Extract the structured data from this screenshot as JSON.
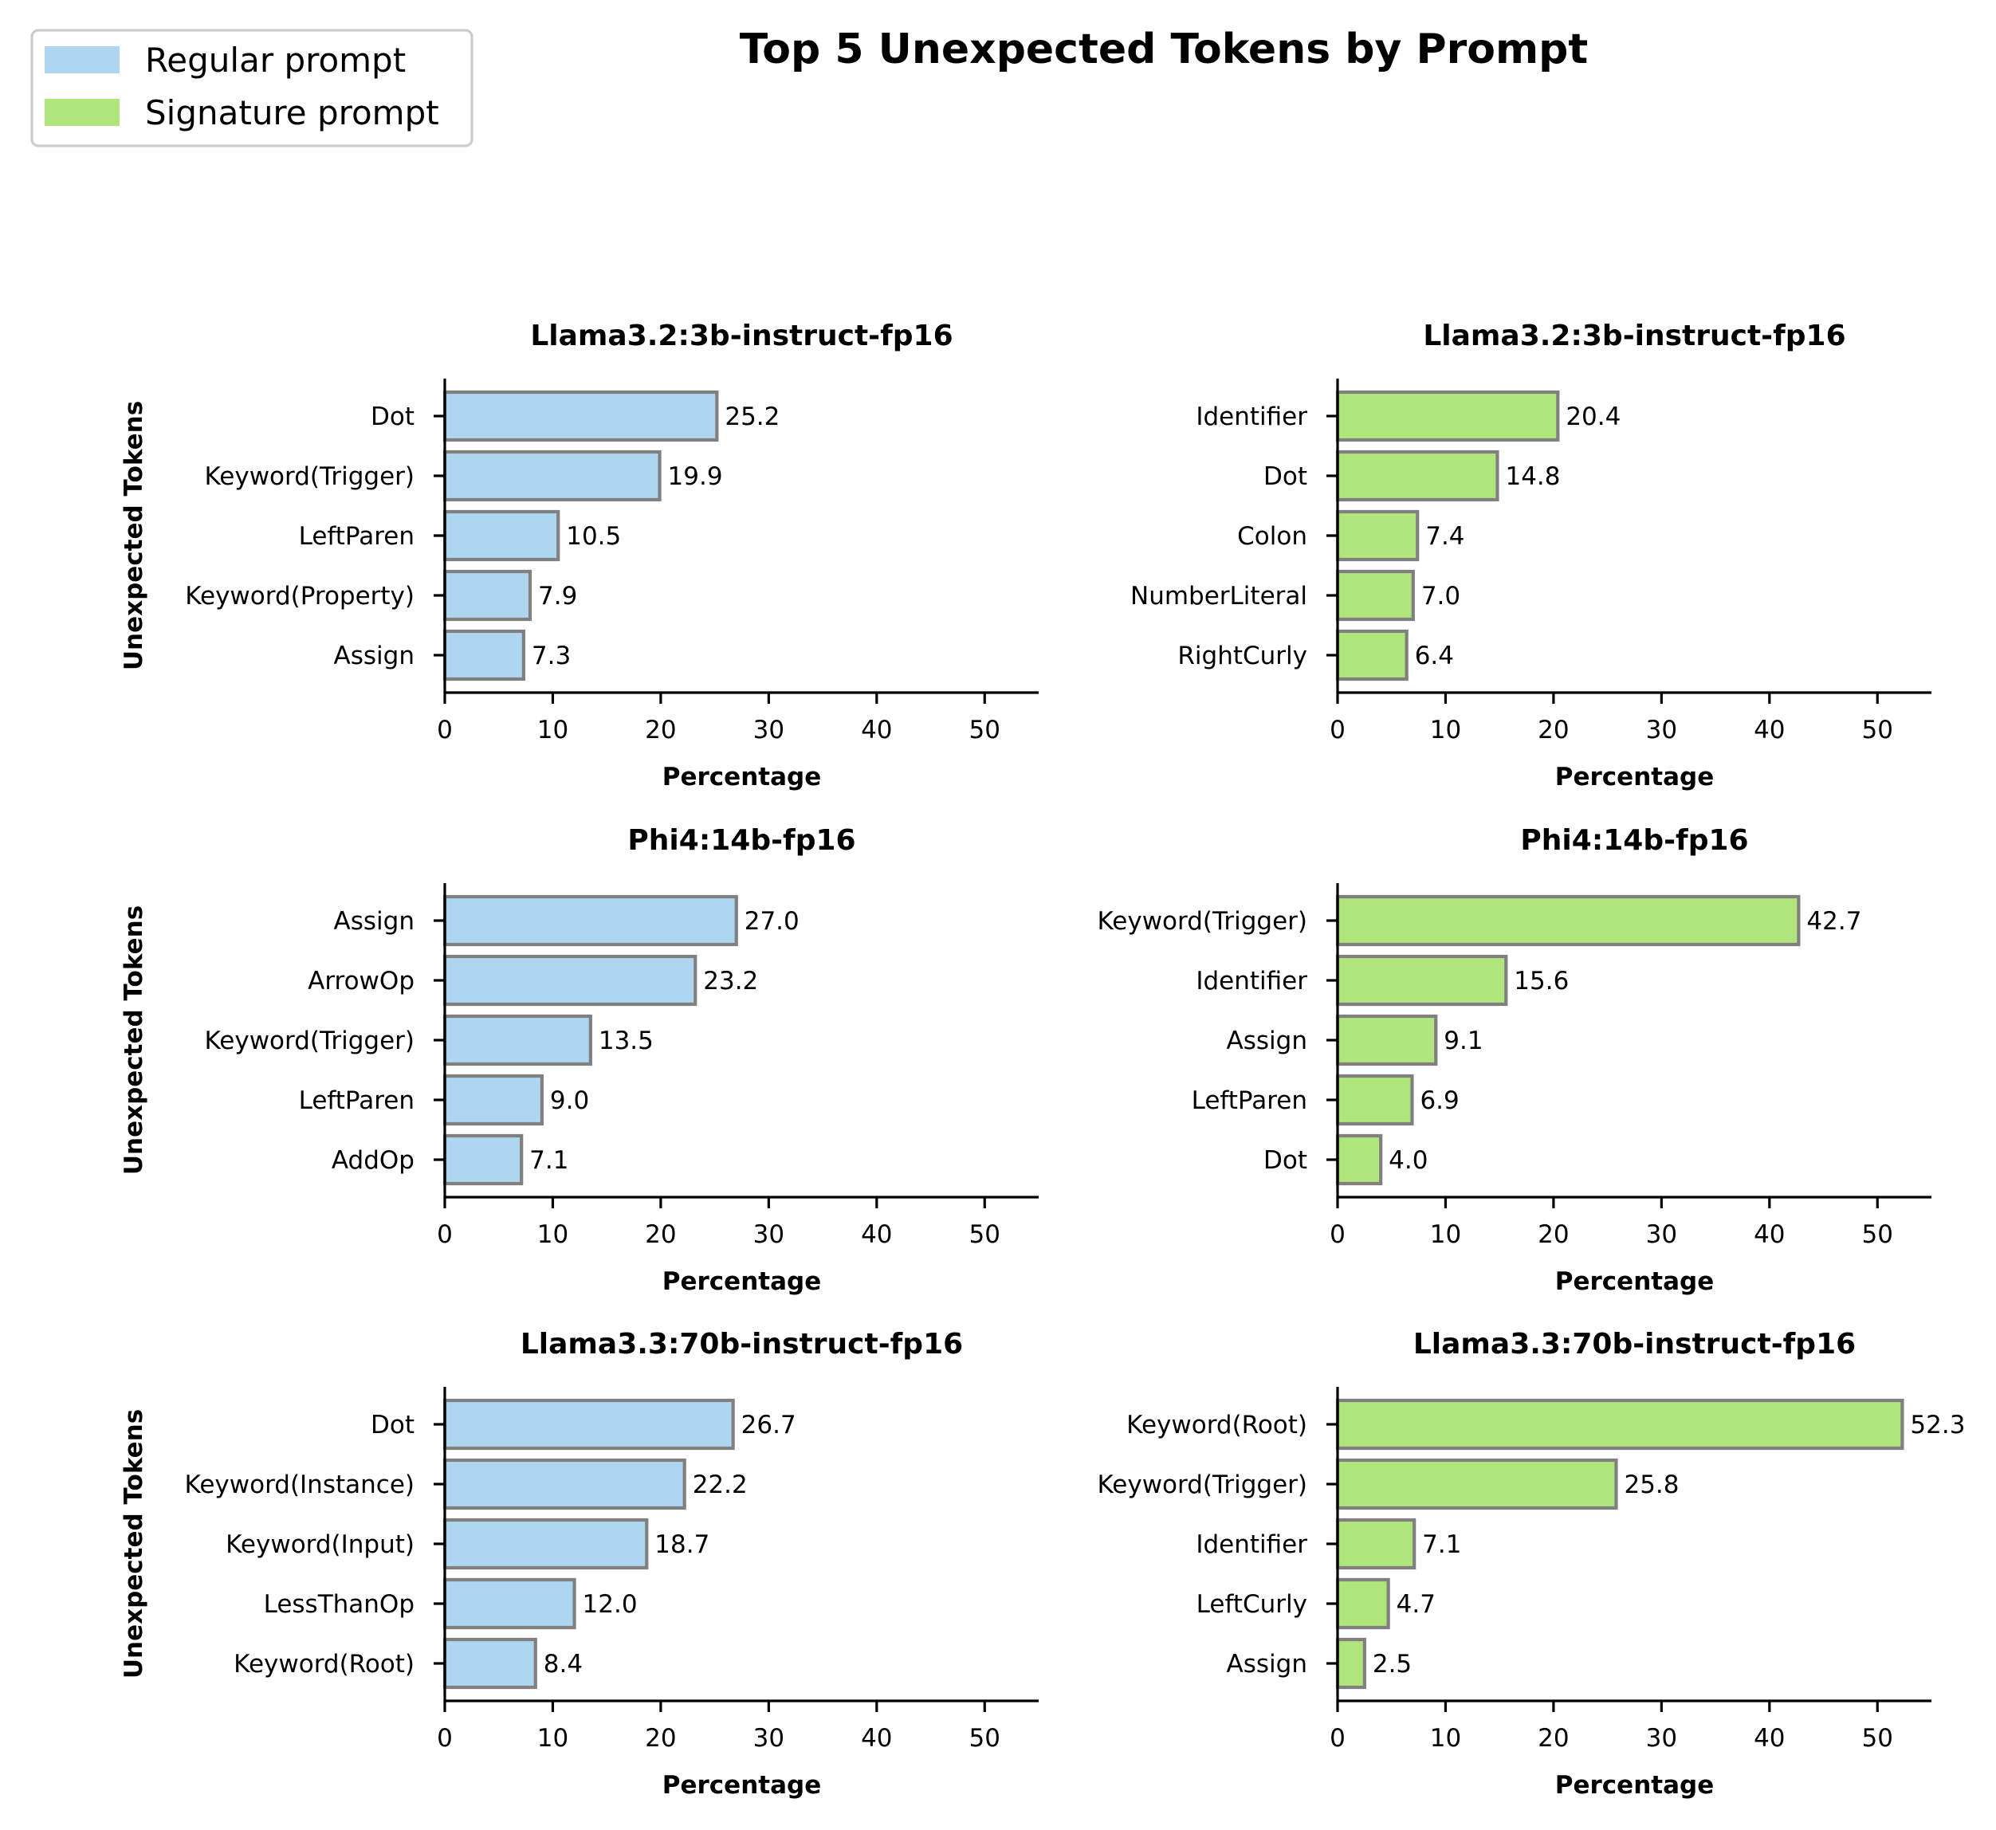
{
  "chart_data": {
    "type": "bar",
    "title": "Top 5 Unexpected Tokens by Prompt",
    "legend": {
      "placement": "top-left",
      "entries": [
        {
          "label": "Regular prompt",
          "color": "#aed6f1"
        },
        {
          "label": "Signature prompt",
          "color": "#b0e57c"
        }
      ]
    },
    "axis": {
      "xlabel": "Percentage",
      "ylabel": "Unexpected Tokens",
      "xlim": [
        0,
        55
      ],
      "xticks": [
        0,
        10,
        20,
        30,
        40,
        50
      ],
      "grid": false
    },
    "panels": [
      {
        "title": "Llama3.2:3b-instruct-fp16",
        "prompt": "regular",
        "categories": [
          "Dot",
          "Keyword(Trigger)",
          "LeftParen",
          "Keyword(Property)",
          "Assign"
        ],
        "values": [
          25.2,
          19.9,
          10.5,
          7.9,
          7.3
        ],
        "labels": [
          "25.2",
          "19.9",
          "10.5",
          "7.9",
          "7.3"
        ]
      },
      {
        "title": "Llama3.2:3b-instruct-fp16",
        "prompt": "signature",
        "categories": [
          "Identifier",
          "Dot",
          "Colon",
          "NumberLiteral",
          "RightCurly"
        ],
        "values": [
          20.4,
          14.8,
          7.4,
          7.0,
          6.4
        ],
        "labels": [
          "20.4",
          "14.8",
          "7.4",
          "7.0",
          "6.4"
        ]
      },
      {
        "title": "Phi4:14b-fp16",
        "prompt": "regular",
        "categories": [
          "Assign",
          "ArrowOp",
          "Keyword(Trigger)",
          "LeftParen",
          "AddOp"
        ],
        "values": [
          27.0,
          23.2,
          13.5,
          9.0,
          7.1
        ],
        "labels": [
          "27.0",
          "23.2",
          "13.5",
          "9.0",
          "7.1"
        ]
      },
      {
        "title": "Phi4:14b-fp16",
        "prompt": "signature",
        "categories": [
          "Keyword(Trigger)",
          "Identifier",
          "Assign",
          "LeftParen",
          "Dot"
        ],
        "values": [
          42.7,
          15.6,
          9.1,
          6.9,
          4.0
        ],
        "labels": [
          "42.7",
          "15.6",
          "9.1",
          "6.9",
          "4.0"
        ]
      },
      {
        "title": "Llama3.3:70b-instruct-fp16",
        "prompt": "regular",
        "categories": [
          "Dot",
          "Keyword(Instance)",
          "Keyword(Input)",
          "LessThanOp",
          "Keyword(Root)"
        ],
        "values": [
          26.7,
          22.2,
          18.7,
          12.0,
          8.4
        ],
        "labels": [
          "26.7",
          "22.2",
          "18.7",
          "12.0",
          "8.4"
        ]
      },
      {
        "title": "Llama3.3:70b-instruct-fp16",
        "prompt": "signature",
        "categories": [
          "Keyword(Root)",
          "Keyword(Trigger)",
          "Identifier",
          "LeftCurly",
          "Assign"
        ],
        "values": [
          52.3,
          25.8,
          7.1,
          4.7,
          2.5
        ],
        "labels": [
          "52.3",
          "25.8",
          "7.1",
          "4.7",
          "2.5"
        ]
      }
    ],
    "colors": {
      "regular": "#aed6f1",
      "signature": "#b0e57c",
      "edge": "#808080"
    }
  }
}
